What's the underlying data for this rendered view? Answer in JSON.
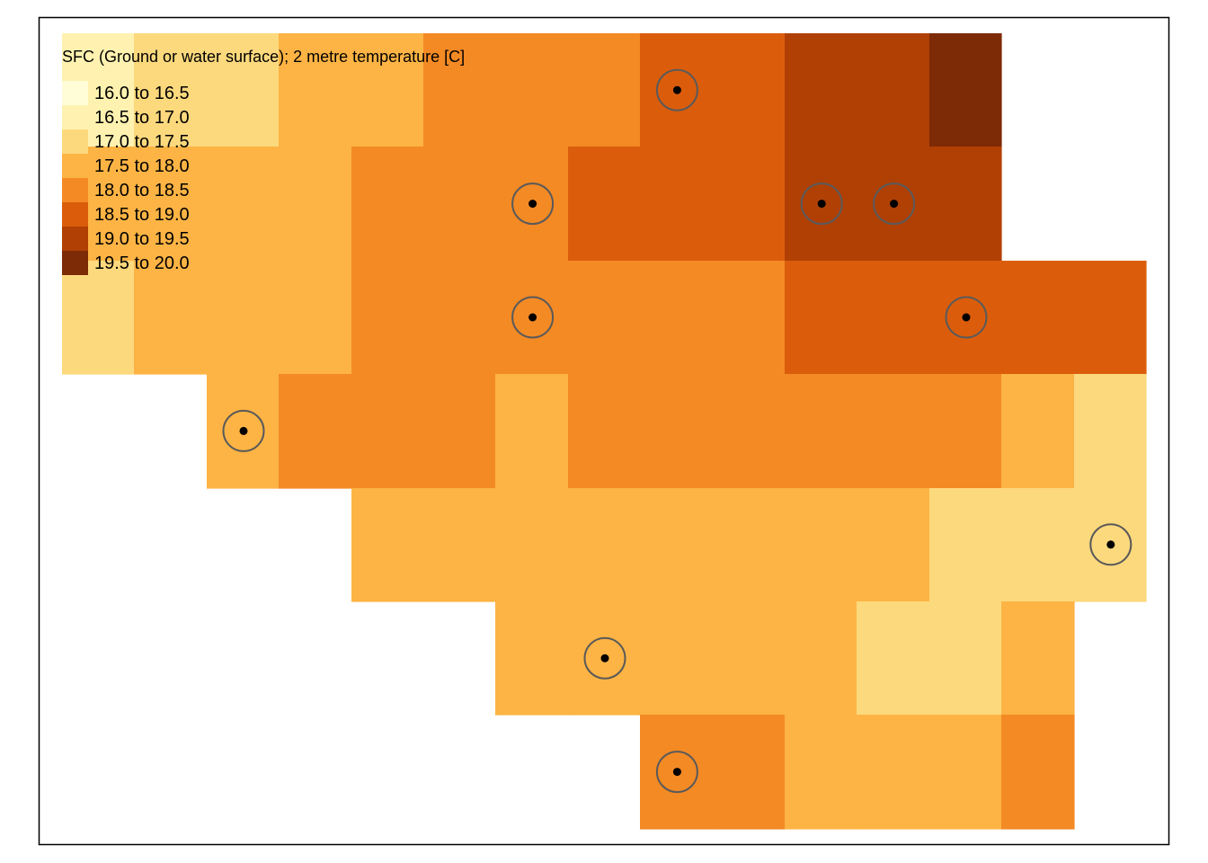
{
  "map": {
    "title": "SFC (Ground or water surface); 2 metre temperature [C]",
    "units": "C",
    "palette_colors": [
      "#FFFCD8",
      "#FFF2B0",
      "#FDD97D",
      "#FDB444",
      "#F48A24",
      "#DB5D0C",
      "#B14004",
      "#7D2A06"
    ],
    "legend": [
      {
        "label": "16.0 to 16.5",
        "color": "#FFFCD8"
      },
      {
        "label": "16.5 to 17.0",
        "color": "#FFF2B0"
      },
      {
        "label": "17.0 to 17.5",
        "color": "#FDD97D"
      },
      {
        "label": "17.5 to 18.0",
        "color": "#FDB444"
      },
      {
        "label": "18.0 to 18.5",
        "color": "#F48A24"
      },
      {
        "label": "18.5 to 19.0",
        "color": "#DB5D0C"
      },
      {
        "label": "19.0 to 19.5",
        "color": "#B14004"
      },
      {
        "label": "19.5 to 20.0",
        "color": "#7D2A06"
      }
    ],
    "grid_classes": [
      [
        -1,
        2,
        2,
        3,
        3,
        4,
        4,
        4,
        5,
        5,
        6,
        6,
        7,
        -1,
        -1
      ],
      [
        3,
        3,
        3,
        3,
        4,
        4,
        4,
        5,
        5,
        5,
        6,
        6,
        6,
        -1,
        -1
      ],
      [
        2,
        3,
        3,
        3,
        4,
        4,
        4,
        4,
        4,
        4,
        5,
        5,
        5,
        5,
        5
      ],
      [
        -1,
        -1,
        3,
        4,
        4,
        4,
        3,
        4,
        4,
        4,
        4,
        4,
        4,
        3,
        2
      ],
      [
        -1,
        -1,
        -1,
        -1,
        3,
        3,
        3,
        3,
        3,
        3,
        3,
        3,
        2,
        2,
        2
      ],
      [
        -1,
        -1,
        -1,
        -1,
        -1,
        -1,
        3,
        3,
        3,
        3,
        3,
        2,
        2,
        3,
        -1
      ],
      [
        -1,
        -1,
        -1,
        -1,
        -1,
        -1,
        -1,
        -1,
        4,
        4,
        3,
        3,
        3,
        4,
        -1
      ]
    ],
    "grid_class_overrides": [
      {
        "row": 0,
        "col": 0,
        "class": 1
      },
      {
        "row": 0,
        "col": 1,
        "class": 2
      }
    ],
    "station_markers": [
      {
        "col": 8,
        "row": 0
      },
      {
        "col": 6,
        "row": 1
      },
      {
        "col": 10,
        "row": 1
      },
      {
        "col": 11,
        "row": 1
      },
      {
        "col": 6,
        "row": 2
      },
      {
        "col": 12,
        "row": 2
      },
      {
        "col": 2,
        "row": 3
      },
      {
        "col": 14,
        "row": 4
      },
      {
        "col": 7,
        "row": 5
      },
      {
        "col": 8,
        "row": 6
      }
    ]
  }
}
